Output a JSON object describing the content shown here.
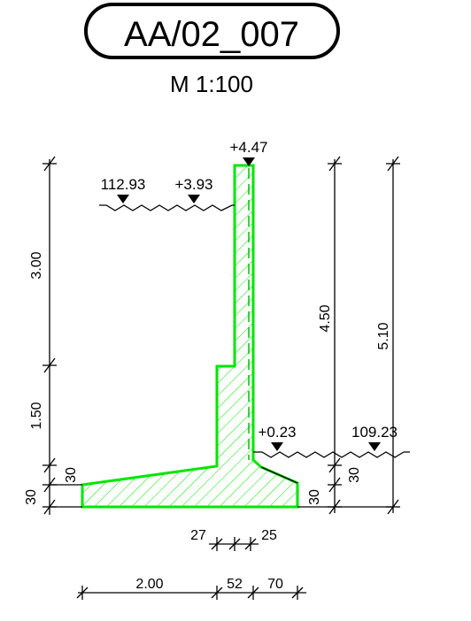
{
  "drawing": {
    "title": "AA/02_007",
    "scale": "M 1:100",
    "colors": {
      "wall_fill": "#ffffff",
      "wall_outline": "#00e600",
      "hatch": "#00e600",
      "line": "#000000"
    },
    "levels": {
      "top_of_wall": "+4.47",
      "upper_ground_abs": "112.93",
      "upper_ground_rel": "+3.93",
      "lower_ground_rel": "+0.23",
      "lower_ground_abs": "109.23"
    },
    "dims_vertical": {
      "upper": "3.00",
      "middle": "1.50",
      "left_30_a": "30",
      "left_30_b": "30",
      "height_total_a": "4.50",
      "height_total_b": "5.10",
      "right_30_a": "30",
      "right_30_b": "30"
    },
    "dims_horizontal": {
      "stem_left": "27",
      "stem_right": "25",
      "heel": "2.00",
      "stem": "52",
      "toe": "70"
    }
  }
}
